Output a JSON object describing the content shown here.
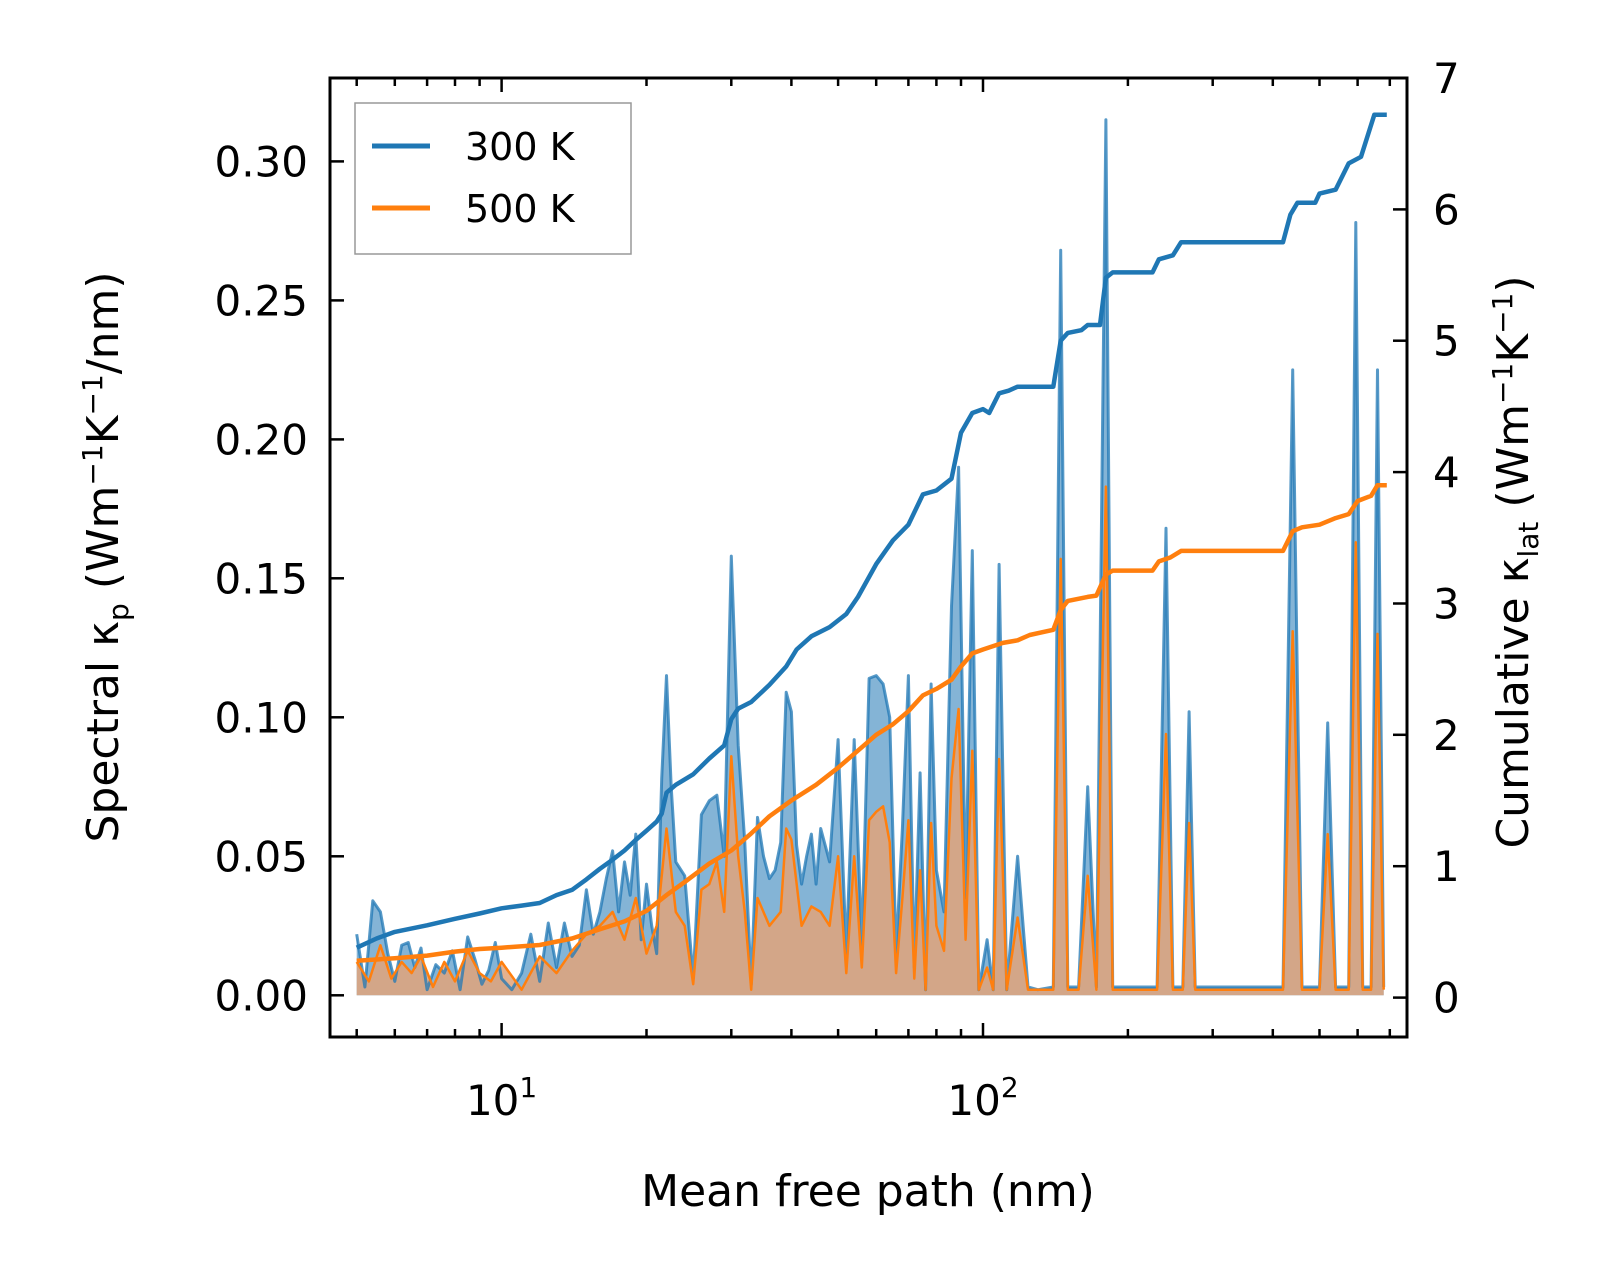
{
  "chart_data": {
    "type": "line",
    "xscale": "log",
    "xlabel": "Mean free path (nm)",
    "xlim": [
      4.4,
      760
    ],
    "xticks": [
      {
        "value": 10,
        "base": "10",
        "exp": "1"
      },
      {
        "value": 100,
        "base": "10",
        "exp": "2"
      }
    ],
    "ylabel_left": {
      "main": "Spectral κ",
      "sub": "p",
      "pre": " (Wm",
      "sup1": "−1",
      "mid": "K",
      "sup2": "−1",
      "post": "/nm)"
    },
    "ylim_left": [
      -0.015,
      0.33
    ],
    "yticks_left": [
      "0.00",
      "0.05",
      "0.10",
      "0.15",
      "0.20",
      "0.25",
      "0.30"
    ],
    "ylabel_right": {
      "main": "Cumulative κ",
      "sub": "lat",
      "pre": " (Wm",
      "sup1": "−1",
      "mid": "K",
      "sup2": "−1",
      "post": ")"
    },
    "ylim_right": [
      -0.3,
      7.0
    ],
    "yticks_right": [
      "0",
      "1",
      "2",
      "3",
      "4",
      "5",
      "6",
      "7"
    ],
    "legend": {
      "position": "upper-left",
      "entries": [
        "300 K",
        "500 K"
      ]
    },
    "colors": {
      "s300": "#1f77b4",
      "s500": "#ff7f0e",
      "fill300": "#1f77b4",
      "fill500": "#e0a37a"
    },
    "spectral_300": [
      [
        5.0,
        0.022
      ],
      [
        5.2,
        0.003
      ],
      [
        5.4,
        0.034
      ],
      [
        5.6,
        0.03
      ],
      [
        5.8,
        0.015
      ],
      [
        6.0,
        0.005
      ],
      [
        6.2,
        0.018
      ],
      [
        6.4,
        0.019
      ],
      [
        6.6,
        0.01
      ],
      [
        6.8,
        0.017
      ],
      [
        7.0,
        0.002
      ],
      [
        7.3,
        0.011
      ],
      [
        7.6,
        0.008
      ],
      [
        7.9,
        0.016
      ],
      [
        8.2,
        0.002
      ],
      [
        8.5,
        0.021
      ],
      [
        8.8,
        0.013
      ],
      [
        9.1,
        0.004
      ],
      [
        9.4,
        0.009
      ],
      [
        9.7,
        0.019
      ],
      [
        10.0,
        0.006
      ],
      [
        10.5,
        0.002
      ],
      [
        11.0,
        0.008
      ],
      [
        11.5,
        0.022
      ],
      [
        12.0,
        0.005
      ],
      [
        12.5,
        0.026
      ],
      [
        13.0,
        0.01
      ],
      [
        13.5,
        0.026
      ],
      [
        14.0,
        0.014
      ],
      [
        14.5,
        0.018
      ],
      [
        15.0,
        0.038
      ],
      [
        15.5,
        0.022
      ],
      [
        16.0,
        0.03
      ],
      [
        16.5,
        0.042
      ],
      [
        17.0,
        0.052
      ],
      [
        17.5,
        0.03
      ],
      [
        18.0,
        0.048
      ],
      [
        18.5,
        0.036
      ],
      [
        19.0,
        0.058
      ],
      [
        19.5,
        0.02
      ],
      [
        20.0,
        0.04
      ],
      [
        20.5,
        0.025
      ],
      [
        21.0,
        0.015
      ],
      [
        21.5,
        0.078
      ],
      [
        22.0,
        0.115
      ],
      [
        22.5,
        0.075
      ],
      [
        23.0,
        0.048
      ],
      [
        24.0,
        0.043
      ],
      [
        25.0,
        0.006
      ],
      [
        26.0,
        0.065
      ],
      [
        27.0,
        0.07
      ],
      [
        28.0,
        0.072
      ],
      [
        29.0,
        0.05
      ],
      [
        30.0,
        0.158
      ],
      [
        31.0,
        0.09
      ],
      [
        32.0,
        0.055
      ],
      [
        33.0,
        0.004
      ],
      [
        34.0,
        0.064
      ],
      [
        35.0,
        0.05
      ],
      [
        36.0,
        0.042
      ],
      [
        37.0,
        0.045
      ],
      [
        38.0,
        0.055
      ],
      [
        39.0,
        0.109
      ],
      [
        40.0,
        0.102
      ],
      [
        41.0,
        0.054
      ],
      [
        42.0,
        0.04
      ],
      [
        43.0,
        0.05
      ],
      [
        44.0,
        0.058
      ],
      [
        45.0,
        0.04
      ],
      [
        46.0,
        0.06
      ],
      [
        48.0,
        0.048
      ],
      [
        50.0,
        0.092
      ],
      [
        52.0,
        0.015
      ],
      [
        54.0,
        0.092
      ],
      [
        56.0,
        0.018
      ],
      [
        58.0,
        0.114
      ],
      [
        60.0,
        0.115
      ],
      [
        62.0,
        0.112
      ],
      [
        64.0,
        0.1
      ],
      [
        66.0,
        0.015
      ],
      [
        68.0,
        0.06
      ],
      [
        70.0,
        0.115
      ],
      [
        72.0,
        0.01
      ],
      [
        74.0,
        0.08
      ],
      [
        76.0,
        0.002
      ],
      [
        78.0,
        0.112
      ],
      [
        80.0,
        0.045
      ],
      [
        83.0,
        0.03
      ],
      [
        86.0,
        0.14
      ],
      [
        89.0,
        0.19
      ],
      [
        92.0,
        0.035
      ],
      [
        95.0,
        0.16
      ],
      [
        98.0,
        0.002
      ],
      [
        102.0,
        0.02
      ],
      [
        105.0,
        0.002
      ],
      [
        108.0,
        0.155
      ],
      [
        112.0,
        0.002
      ],
      [
        118.0,
        0.05
      ],
      [
        124.0,
        0.003
      ],
      [
        130.0,
        0.002
      ],
      [
        140.0,
        0.003
      ],
      [
        145.0,
        0.268
      ],
      [
        150.0,
        0.003
      ],
      [
        158.0,
        0.003
      ],
      [
        165.0,
        0.075
      ],
      [
        172.0,
        0.003
      ],
      [
        180.0,
        0.315
      ],
      [
        186.0,
        0.003
      ],
      [
        230.0,
        0.003
      ],
      [
        240.0,
        0.168
      ],
      [
        248.0,
        0.003
      ],
      [
        260.0,
        0.003
      ],
      [
        268.0,
        0.102
      ],
      [
        276.0,
        0.003
      ],
      [
        420.0,
        0.003
      ],
      [
        440.0,
        0.225
      ],
      [
        460.0,
        0.003
      ],
      [
        500.0,
        0.003
      ],
      [
        520.0,
        0.098
      ],
      [
        540.0,
        0.003
      ],
      [
        575.0,
        0.003
      ],
      [
        595.0,
        0.278
      ],
      [
        615.0,
        0.003
      ],
      [
        640.0,
        0.003
      ],
      [
        660.0,
        0.225
      ],
      [
        680.0,
        0.003
      ]
    ],
    "spectral_500": [
      [
        5.0,
        0.012
      ],
      [
        5.3,
        0.005
      ],
      [
        5.6,
        0.018
      ],
      [
        5.9,
        0.006
      ],
      [
        6.2,
        0.012
      ],
      [
        6.5,
        0.008
      ],
      [
        6.8,
        0.014
      ],
      [
        7.2,
        0.003
      ],
      [
        7.6,
        0.012
      ],
      [
        8.0,
        0.005
      ],
      [
        8.5,
        0.016
      ],
      [
        9.0,
        0.008
      ],
      [
        9.5,
        0.005
      ],
      [
        10.0,
        0.012
      ],
      [
        11.0,
        0.002
      ],
      [
        12.0,
        0.014
      ],
      [
        13.0,
        0.008
      ],
      [
        14.0,
        0.016
      ],
      [
        15.0,
        0.022
      ],
      [
        16.0,
        0.025
      ],
      [
        17.0,
        0.03
      ],
      [
        18.0,
        0.02
      ],
      [
        19.0,
        0.035
      ],
      [
        20.0,
        0.015
      ],
      [
        21.0,
        0.025
      ],
      [
        22.0,
        0.06
      ],
      [
        23.0,
        0.03
      ],
      [
        24.0,
        0.025
      ],
      [
        25.0,
        0.004
      ],
      [
        26.0,
        0.038
      ],
      [
        27.0,
        0.04
      ],
      [
        28.0,
        0.048
      ],
      [
        29.0,
        0.03
      ],
      [
        30.0,
        0.086
      ],
      [
        31.0,
        0.05
      ],
      [
        32.0,
        0.03
      ],
      [
        33.0,
        0.002
      ],
      [
        34.0,
        0.035
      ],
      [
        36.0,
        0.025
      ],
      [
        38.0,
        0.03
      ],
      [
        39.0,
        0.06
      ],
      [
        40.0,
        0.056
      ],
      [
        42.0,
        0.025
      ],
      [
        44.0,
        0.032
      ],
      [
        46.0,
        0.03
      ],
      [
        48.0,
        0.025
      ],
      [
        50.0,
        0.05
      ],
      [
        52.0,
        0.008
      ],
      [
        54.0,
        0.05
      ],
      [
        56.0,
        0.01
      ],
      [
        58.0,
        0.063
      ],
      [
        60.0,
        0.066
      ],
      [
        62.0,
        0.068
      ],
      [
        64.0,
        0.055
      ],
      [
        66.0,
        0.008
      ],
      [
        68.0,
        0.035
      ],
      [
        70.0,
        0.063
      ],
      [
        72.0,
        0.006
      ],
      [
        74.0,
        0.045
      ],
      [
        76.0,
        0.002
      ],
      [
        78.0,
        0.062
      ],
      [
        80.0,
        0.025
      ],
      [
        83.0,
        0.016
      ],
      [
        86.0,
        0.078
      ],
      [
        89.0,
        0.103
      ],
      [
        92.0,
        0.02
      ],
      [
        95.0,
        0.088
      ],
      [
        98.0,
        0.002
      ],
      [
        102.0,
        0.01
      ],
      [
        105.0,
        0.002
      ],
      [
        108.0,
        0.085
      ],
      [
        112.0,
        0.002
      ],
      [
        118.0,
        0.028
      ],
      [
        124.0,
        0.002
      ],
      [
        140.0,
        0.002
      ],
      [
        145.0,
        0.157
      ],
      [
        150.0,
        0.002
      ],
      [
        158.0,
        0.002
      ],
      [
        165.0,
        0.043
      ],
      [
        172.0,
        0.002
      ],
      [
        180.0,
        0.183
      ],
      [
        186.0,
        0.002
      ],
      [
        230.0,
        0.002
      ],
      [
        240.0,
        0.094
      ],
      [
        248.0,
        0.002
      ],
      [
        260.0,
        0.002
      ],
      [
        268.0,
        0.062
      ],
      [
        276.0,
        0.002
      ],
      [
        420.0,
        0.002
      ],
      [
        440.0,
        0.131
      ],
      [
        460.0,
        0.002
      ],
      [
        500.0,
        0.002
      ],
      [
        520.0,
        0.058
      ],
      [
        540.0,
        0.002
      ],
      [
        575.0,
        0.002
      ],
      [
        595.0,
        0.163
      ],
      [
        615.0,
        0.002
      ],
      [
        640.0,
        0.002
      ],
      [
        660.0,
        0.13
      ],
      [
        680.0,
        0.002
      ]
    ],
    "cumulative_300": [
      [
        5.0,
        0.38
      ],
      [
        5.5,
        0.45
      ],
      [
        6.0,
        0.5
      ],
      [
        7.0,
        0.55
      ],
      [
        8.0,
        0.6
      ],
      [
        9.0,
        0.64
      ],
      [
        10.0,
        0.68
      ],
      [
        11.0,
        0.7
      ],
      [
        12.0,
        0.72
      ],
      [
        13.0,
        0.78
      ],
      [
        14.0,
        0.82
      ],
      [
        15.0,
        0.9
      ],
      [
        16.0,
        0.98
      ],
      [
        17.0,
        1.05
      ],
      [
        18.0,
        1.12
      ],
      [
        19.0,
        1.2
      ],
      [
        20.0,
        1.27
      ],
      [
        21.0,
        1.34
      ],
      [
        21.5,
        1.4
      ],
      [
        22.0,
        1.56
      ],
      [
        23.0,
        1.62
      ],
      [
        25.0,
        1.7
      ],
      [
        27.0,
        1.82
      ],
      [
        29.0,
        1.92
      ],
      [
        30.0,
        2.12
      ],
      [
        31.0,
        2.2
      ],
      [
        33.0,
        2.25
      ],
      [
        36.0,
        2.38
      ],
      [
        39.0,
        2.52
      ],
      [
        41.0,
        2.65
      ],
      [
        44.0,
        2.75
      ],
      [
        48.0,
        2.82
      ],
      [
        52.0,
        2.92
      ],
      [
        55.0,
        3.05
      ],
      [
        60.0,
        3.3
      ],
      [
        65.0,
        3.48
      ],
      [
        70.0,
        3.6
      ],
      [
        75.0,
        3.83
      ],
      [
        80.0,
        3.86
      ],
      [
        86.0,
        3.95
      ],
      [
        90.0,
        4.3
      ],
      [
        95.0,
        4.45
      ],
      [
        100.0,
        4.48
      ],
      [
        103.0,
        4.45
      ],
      [
        108.0,
        4.6
      ],
      [
        113.0,
        4.62
      ],
      [
        118.0,
        4.65
      ],
      [
        140.0,
        4.65
      ],
      [
        145.0,
        5.0
      ],
      [
        150.0,
        5.06
      ],
      [
        160.0,
        5.08
      ],
      [
        165.0,
        5.12
      ],
      [
        175.0,
        5.12
      ],
      [
        180.0,
        5.48
      ],
      [
        186.0,
        5.52
      ],
      [
        225.0,
        5.52
      ],
      [
        232.0,
        5.62
      ],
      [
        248.0,
        5.65
      ],
      [
        258.0,
        5.75
      ],
      [
        420.0,
        5.75
      ],
      [
        435.0,
        5.96
      ],
      [
        450.0,
        6.05
      ],
      [
        490.0,
        6.05
      ],
      [
        500.0,
        6.12
      ],
      [
        540.0,
        6.15
      ],
      [
        575.0,
        6.35
      ],
      [
        610.0,
        6.4
      ],
      [
        650.0,
        6.72
      ],
      [
        690.0,
        6.72
      ]
    ],
    "cumulative_500": [
      [
        5.0,
        0.28
      ],
      [
        6.0,
        0.3
      ],
      [
        7.0,
        0.32
      ],
      [
        8.0,
        0.35
      ],
      [
        9.0,
        0.37
      ],
      [
        10.0,
        0.38
      ],
      [
        12.0,
        0.4
      ],
      [
        14.0,
        0.45
      ],
      [
        16.0,
        0.52
      ],
      [
        18.0,
        0.58
      ],
      [
        20.0,
        0.66
      ],
      [
        22.0,
        0.78
      ],
      [
        24.0,
        0.88
      ],
      [
        27.0,
        1.02
      ],
      [
        30.0,
        1.12
      ],
      [
        33.0,
        1.25
      ],
      [
        36.0,
        1.38
      ],
      [
        40.0,
        1.5
      ],
      [
        45.0,
        1.62
      ],
      [
        50.0,
        1.75
      ],
      [
        55.0,
        1.88
      ],
      [
        60.0,
        2.0
      ],
      [
        65.0,
        2.08
      ],
      [
        70.0,
        2.18
      ],
      [
        75.0,
        2.3
      ],
      [
        80.0,
        2.35
      ],
      [
        86.0,
        2.42
      ],
      [
        90.0,
        2.52
      ],
      [
        95.0,
        2.62
      ],
      [
        100.0,
        2.65
      ],
      [
        110.0,
        2.7
      ],
      [
        118.0,
        2.72
      ],
      [
        125.0,
        2.76
      ],
      [
        140.0,
        2.8
      ],
      [
        145.0,
        2.95
      ],
      [
        150.0,
        3.02
      ],
      [
        165.0,
        3.05
      ],
      [
        172.0,
        3.06
      ],
      [
        180.0,
        3.22
      ],
      [
        186.0,
        3.25
      ],
      [
        225.0,
        3.25
      ],
      [
        232.0,
        3.32
      ],
      [
        245.0,
        3.35
      ],
      [
        258.0,
        3.4
      ],
      [
        420.0,
        3.4
      ],
      [
        440.0,
        3.55
      ],
      [
        460.0,
        3.58
      ],
      [
        500.0,
        3.6
      ],
      [
        540.0,
        3.65
      ],
      [
        575.0,
        3.68
      ],
      [
        600.0,
        3.78
      ],
      [
        640.0,
        3.82
      ],
      [
        660.0,
        3.9
      ],
      [
        690.0,
        3.9
      ]
    ]
  }
}
